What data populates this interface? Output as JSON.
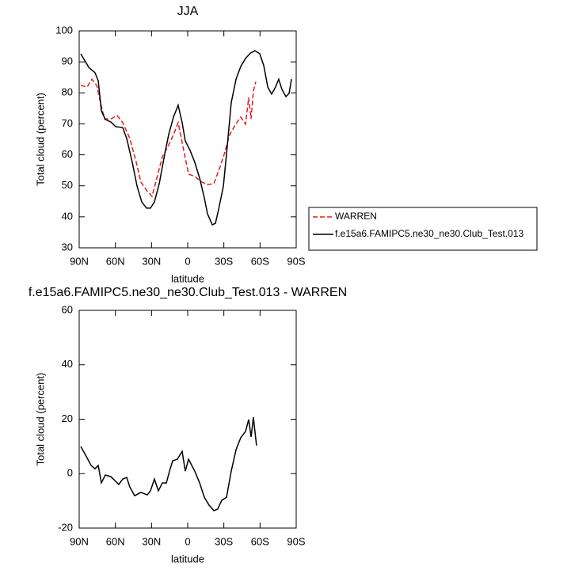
{
  "chart_data": [
    {
      "type": "line",
      "title": "JJA",
      "xlabel": "latitude",
      "ylabel": "Total cloud (percent)",
      "xlim": [
        90,
        -90
      ],
      "ylim": [
        30,
        100
      ],
      "xticks": [
        {
          "value": 90,
          "label": "90N"
        },
        {
          "value": 60,
          "label": "60N"
        },
        {
          "value": 30,
          "label": "30N"
        },
        0,
        {
          "value": -30,
          "label": "30S"
        },
        {
          "value": -60,
          "label": "60S"
        },
        {
          "value": -90,
          "label": "90S"
        }
      ],
      "yticks": [
        30,
        40,
        50,
        60,
        70,
        80,
        90,
        100
      ],
      "legend": "outside-right",
      "series": [
        {
          "name": "WARREN",
          "color": "#e41a1c",
          "dashed": true,
          "x": [
            88.7,
            83.4,
            79.5,
            75.5,
            72.3,
            69,
            63.7,
            58.5,
            53.9,
            48,
            42.7,
            38.8,
            34.2,
            29.6,
            25.6,
            21,
            16.4,
            11.8,
            7.9,
            4.6,
            -0.7,
            -5.9,
            -11.8,
            -16.4,
            -21.7,
            -26.3,
            -30.2,
            -34.8,
            -39.4,
            -44,
            -48,
            -50.6,
            -52.6,
            -54.5,
            -56.5
          ],
          "values": [
            82.4,
            81.9,
            84.4,
            82.4,
            76.8,
            71.6,
            71.6,
            72.7,
            70.4,
            65.3,
            57.6,
            51.2,
            48.6,
            46.6,
            52.5,
            59.4,
            62.7,
            66.5,
            70.4,
            64.0,
            53.8,
            53.0,
            51.2,
            50.4,
            50.7,
            55.5,
            60.1,
            66.5,
            69.6,
            72.2,
            69.9,
            78.5,
            71.6,
            80.6,
            83.6
          ]
        },
        {
          "name": "f.e15a6.FAMIPC5.ne30_ne30.Club_Test.013",
          "color": "#000000",
          "dashed": false,
          "x": [
            88.7,
            82,
            76.9,
            74.2,
            71.6,
            68.3,
            63.7,
            59.8,
            53.9,
            50.6,
            46,
            42,
            38.1,
            34.2,
            30.9,
            27.6,
            23.6,
            19.7,
            15.8,
            11.8,
            7.9,
            4.6,
            2,
            -2,
            -5.9,
            -9.9,
            -13.8,
            -16.4,
            -20.4,
            -23,
            -25.6,
            -29.6,
            -32.8,
            -36.1,
            -40.1,
            -44,
            -48,
            -51.9,
            -55.8,
            -59.8,
            -63.1,
            -66.4,
            -69.6,
            -72.9,
            -75.5,
            -78.2,
            -81.5,
            -84.1,
            -86.1
          ],
          "values": [
            92.6,
            88.2,
            86.5,
            83.9,
            74.2,
            71.4,
            70.6,
            69.1,
            68.8,
            65.3,
            57.6,
            49.9,
            44.8,
            42.8,
            42.8,
            44.8,
            50.7,
            58.9,
            66.5,
            72.2,
            76.0,
            70.4,
            64.5,
            61.4,
            57.6,
            52.5,
            46.1,
            41.0,
            37.4,
            37.9,
            42.3,
            49.9,
            62.7,
            76.8,
            84.4,
            88.5,
            91.1,
            92.8,
            93.6,
            92.6,
            88.8,
            81.9,
            79.6,
            81.9,
            84.4,
            81.1,
            78.8,
            79.8,
            84.4
          ]
        }
      ]
    },
    {
      "type": "line",
      "title": "f.e15a6.FAMIPC5.ne30_ne30.Club_Test.013 - WARREN",
      "xlabel": "latitude",
      "ylabel": "Total cloud (percent)",
      "xlim": [
        90,
        -90
      ],
      "ylim": [
        -20,
        60
      ],
      "xticks": [
        {
          "value": 90,
          "label": "90N"
        },
        {
          "value": 60,
          "label": "60N"
        },
        {
          "value": 30,
          "label": "30N"
        },
        0,
        {
          "value": -30,
          "label": "30S"
        },
        {
          "value": -60,
          "label": "60S"
        },
        {
          "value": -90,
          "label": "90S"
        }
      ],
      "yticks": [
        -20,
        0,
        20,
        40,
        60
      ],
      "series": [
        {
          "color": "#000000",
          "dashed": false,
          "x": [
            88.7,
            84.7,
            80.1,
            76.9,
            74.2,
            71.6,
            68.3,
            63.7,
            59.8,
            57.2,
            53.9,
            50.6,
            48,
            44,
            38.8,
            33.5,
            30.9,
            27.6,
            24.3,
            21,
            17.7,
            15.1,
            12.5,
            8.6,
            4.6,
            2,
            -0.7,
            -5.9,
            -9.9,
            -13.8,
            -17.8,
            -21.7,
            -24.9,
            -28.2,
            -32.2,
            -36.1,
            -40.1,
            -44,
            -48,
            -50.6,
            -52.6,
            -54.5,
            -57.1
          ],
          "values": [
            10.0,
            6.8,
            3.0,
            1.8,
            3.0,
            -3.4,
            -0.5,
            -1.1,
            -2.8,
            -4.0,
            -2.0,
            -1.4,
            -4.9,
            -8.1,
            -6.9,
            -7.8,
            -6.3,
            -2.0,
            -6.3,
            -3.4,
            -3.4,
            0.9,
            4.7,
            5.3,
            8.2,
            0.9,
            5.3,
            0.9,
            -3.4,
            -8.7,
            -11.6,
            -13.6,
            -13.0,
            -9.8,
            -8.7,
            0.9,
            8.8,
            13.2,
            15.5,
            19.9,
            13.5,
            20.7,
            10.3
          ]
        }
      ]
    }
  ]
}
